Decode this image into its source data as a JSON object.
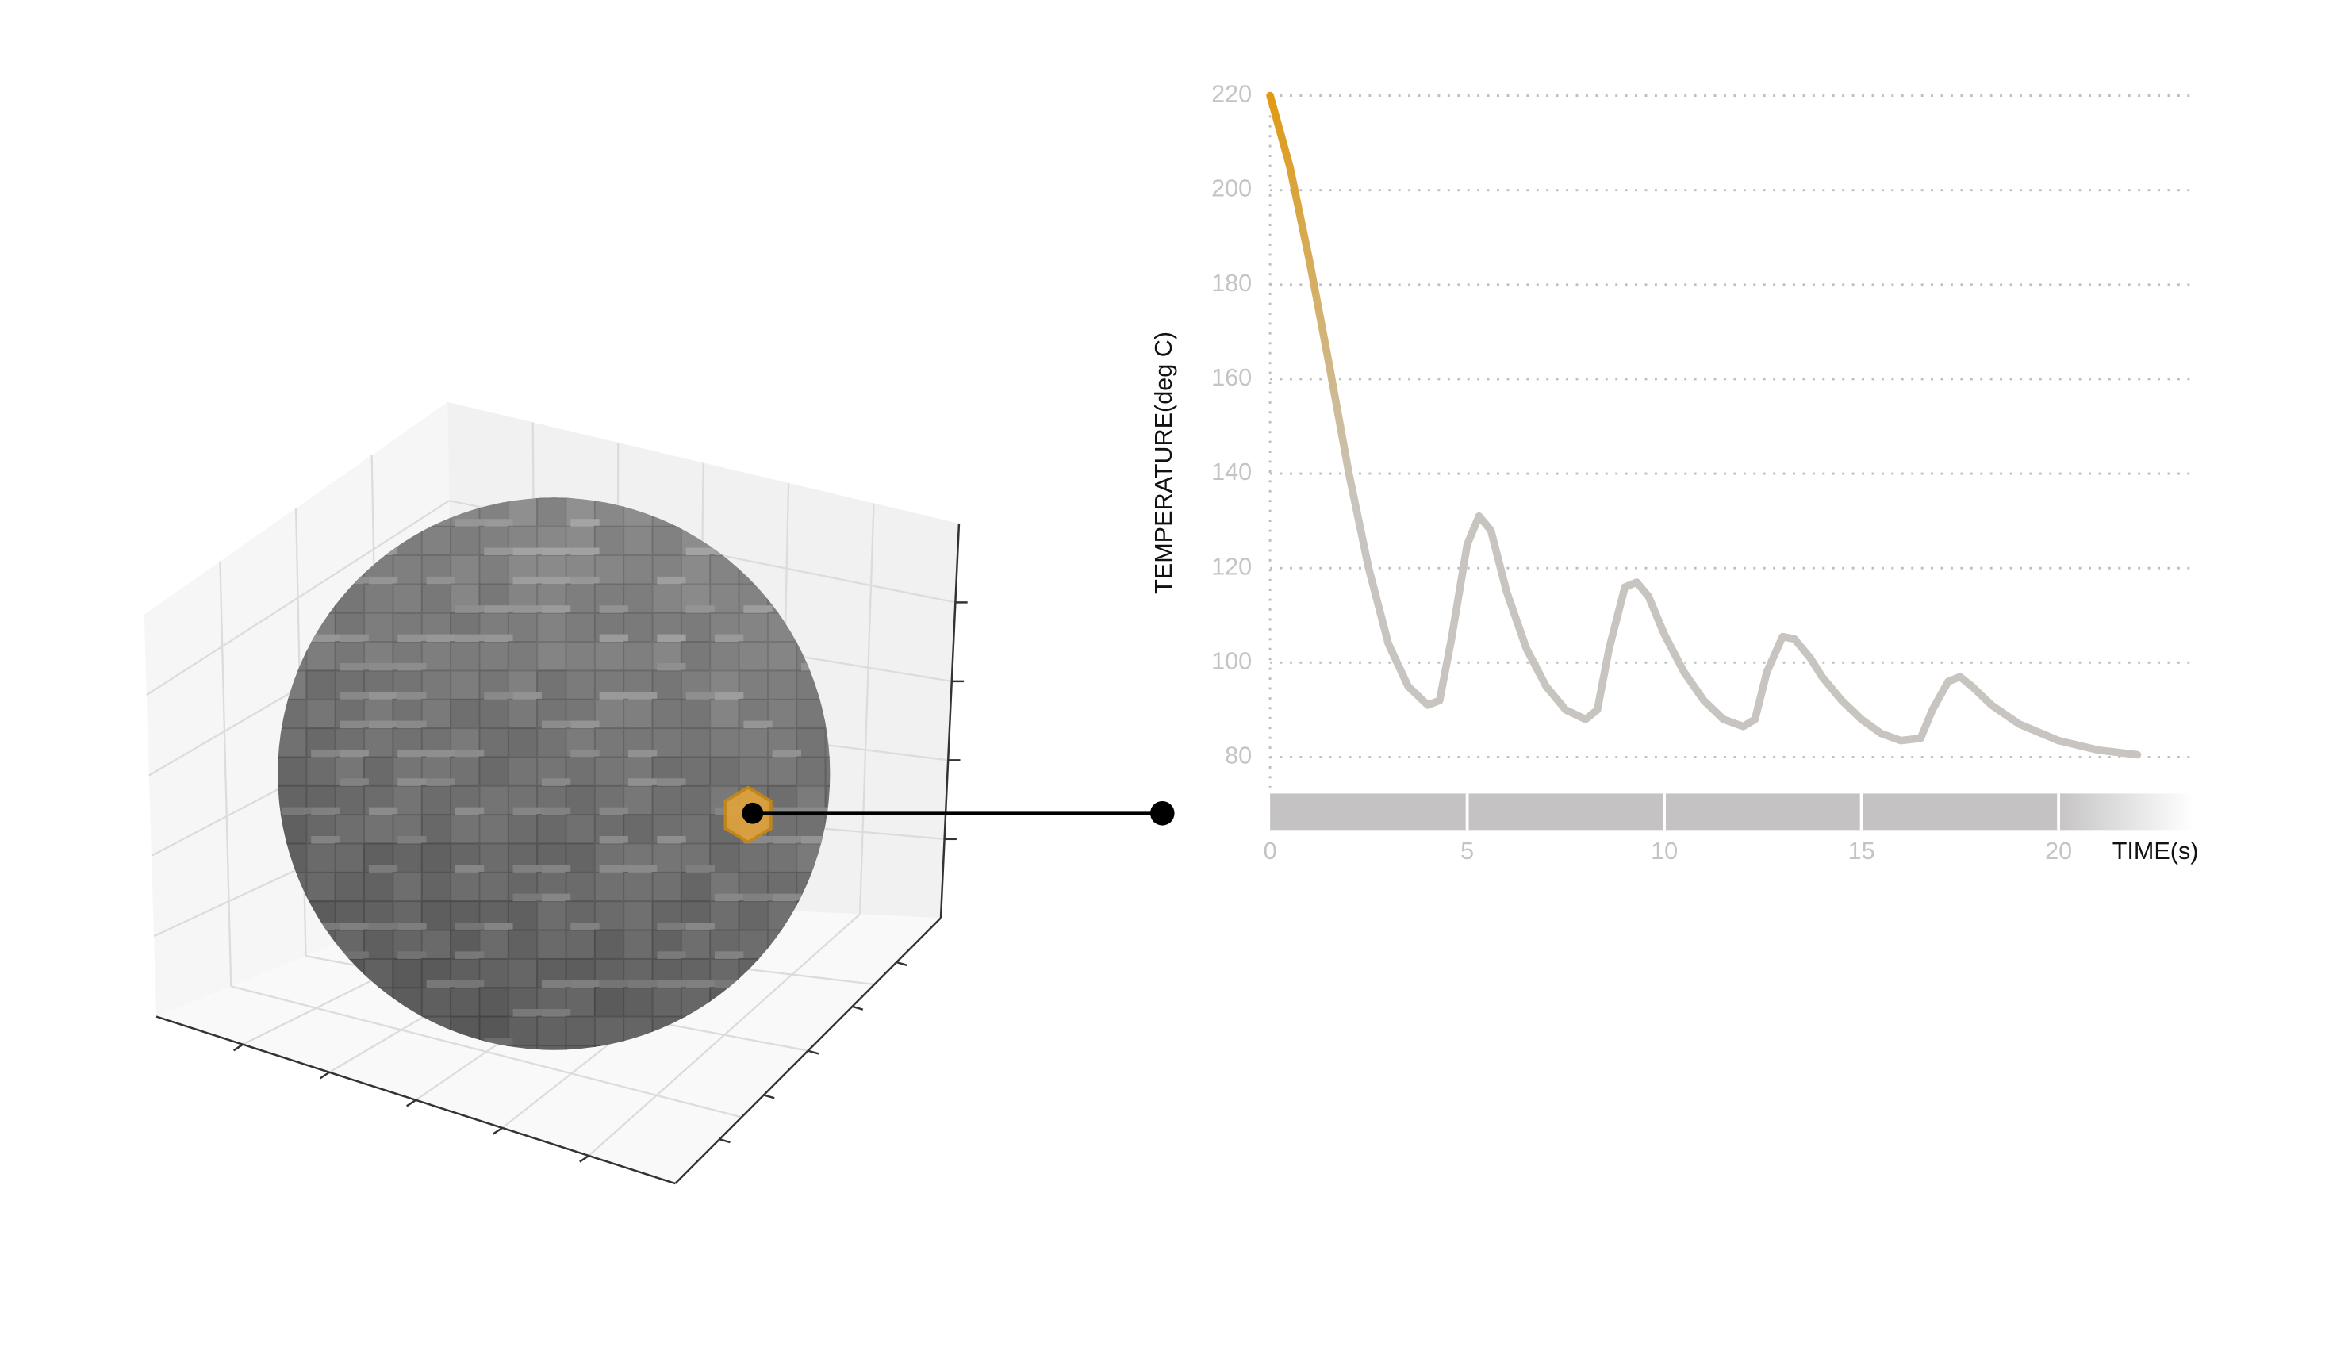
{
  "chart_data": {
    "type": "line",
    "y_label": "TEMPERATURE(deg C)",
    "x_label": "TIME(s)",
    "x": [
      0,
      0.5,
      1,
      1.5,
      2,
      2.5,
      3,
      3.5,
      4,
      4.3,
      4.6,
      5,
      5.3,
      5.6,
      6,
      6.5,
      7,
      7.5,
      8,
      8.3,
      8.6,
      9,
      9.3,
      9.6,
      10,
      10.5,
      11,
      11.5,
      12,
      12.3,
      12.6,
      13,
      13.3,
      13.7,
      14,
      14.5,
      15,
      15.5,
      16,
      16.5,
      16.8,
      17.2,
      17.5,
      17.8,
      18.3,
      19,
      20,
      21,
      22
    ],
    "values": [
      220,
      205,
      185,
      163,
      140,
      120,
      104,
      95,
      91,
      92,
      105,
      125,
      131,
      128,
      115,
      103,
      95,
      90,
      88,
      90,
      103,
      116,
      117,
      114,
      106,
      98,
      92,
      88,
      86.5,
      88,
      98,
      105.5,
      105,
      101,
      97,
      92,
      88,
      85,
      83.5,
      84,
      90,
      96,
      97,
      95,
      91,
      87,
      83.5,
      81.5,
      80.5
    ],
    "color": [
      "#e09a14",
      "#c8c5c0"
    ],
    "xlim": [
      0,
      23.4
    ],
    "ylim": [
      80,
      220
    ],
    "xticks": [
      0,
      5,
      10,
      15,
      20
    ],
    "yticks": [
      80,
      100,
      120,
      140,
      160,
      180,
      200,
      220
    ],
    "grid": true
  }
}
